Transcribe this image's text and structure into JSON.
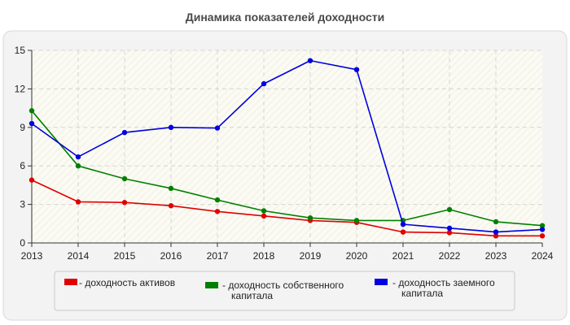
{
  "chart_data": {
    "type": "line",
    "title": "Динамика показателей доходности",
    "xlabel": "",
    "ylabel": "",
    "x": [
      "2013",
      "2014",
      "2015",
      "2016",
      "2017",
      "2018",
      "2019",
      "2020",
      "2021",
      "2022",
      "2023",
      "2024"
    ],
    "ylim": [
      0,
      15
    ],
    "yticks": [
      "0",
      "3",
      "6",
      "9",
      "12",
      "15"
    ],
    "grid": true,
    "legend_position": "bottom",
    "series": [
      {
        "name": "- доходность активов",
        "color": "#e00000",
        "values": [
          4.9,
          3.2,
          3.15,
          2.9,
          2.45,
          2.1,
          1.75,
          1.6,
          0.85,
          0.8,
          0.55,
          0.55
        ]
      },
      {
        "name": "- доходность собственного капитала",
        "color": "#008000",
        "values": [
          10.3,
          6.0,
          5.0,
          4.25,
          3.35,
          2.5,
          1.95,
          1.75,
          1.75,
          2.6,
          1.65,
          1.35
        ]
      },
      {
        "name": "- доходность заемного капитала",
        "color": "#0000e0",
        "values": [
          9.3,
          6.7,
          8.6,
          9.0,
          8.95,
          12.4,
          14.2,
          13.5,
          1.45,
          1.15,
          0.85,
          1.05
        ]
      }
    ]
  }
}
